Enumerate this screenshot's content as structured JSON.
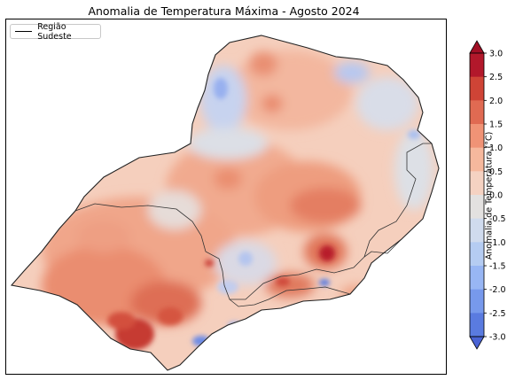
{
  "title": "Anomalia de Temperatura Máxima - Agosto 2024",
  "legend": {
    "label": "Região Sudeste"
  },
  "colorbar": {
    "label": "Anomalia de Temperatura (°C)",
    "ticks": [
      "3.0",
      "2.5",
      "2.0",
      "1.5",
      "1.0",
      "0.5",
      "0.0",
      "-0.5",
      "-1.0",
      "-1.5",
      "-2.0",
      "-2.5",
      "-3.0"
    ],
    "colors": [
      "#b2182b",
      "#cf4436",
      "#e06a52",
      "#f09376",
      "#f6b89d",
      "#f5d2c2",
      "#e3e1e0",
      "#d0dbee",
      "#b5ccf2",
      "#98b6f4",
      "#7799ec",
      "#5a7be0"
    ],
    "extend_top_color": "#a10f25",
    "extend_bottom_color": "#4a63d4"
  }
}
